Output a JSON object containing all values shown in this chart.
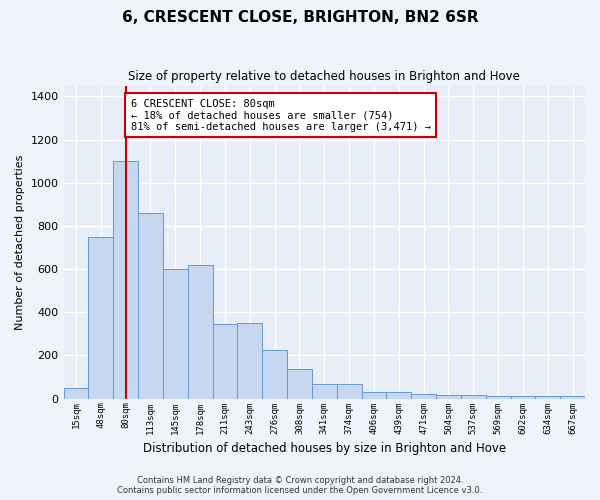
{
  "title": "6, CRESCENT CLOSE, BRIGHTON, BN2 6SR",
  "subtitle": "Size of property relative to detached houses in Brighton and Hove",
  "xlabel": "Distribution of detached houses by size in Brighton and Hove",
  "ylabel": "Number of detached properties",
  "categories": [
    "15sqm",
    "48sqm",
    "80sqm",
    "113sqm",
    "145sqm",
    "178sqm",
    "211sqm",
    "243sqm",
    "276sqm",
    "308sqm",
    "341sqm",
    "374sqm",
    "406sqm",
    "439sqm",
    "471sqm",
    "504sqm",
    "537sqm",
    "569sqm",
    "602sqm",
    "634sqm",
    "667sqm"
  ],
  "values": [
    50,
    750,
    1100,
    860,
    600,
    620,
    345,
    350,
    225,
    135,
    70,
    70,
    30,
    30,
    20,
    15,
    15,
    10,
    10,
    10,
    10
  ],
  "bar_color": "#c5d8f0",
  "bar_edge_color": "#6699cc",
  "vline_x": 2,
  "vline_color": "#cc0000",
  "annotation_text": "6 CRESCENT CLOSE: 80sqm\n← 18% of detached houses are smaller (754)\n81% of semi-detached houses are larger (3,471) →",
  "annotation_box_color": "#ffffff",
  "annotation_box_edge": "#cc0000",
  "ylim": [
    0,
    1450
  ],
  "yticks": [
    0,
    200,
    400,
    600,
    800,
    1000,
    1200,
    1400
  ],
  "background_color": "#e8eef8",
  "grid_color": "#ffffff",
  "footer1": "Contains HM Land Registry data © Crown copyright and database right 2024.",
  "footer2": "Contains public sector information licensed under the Open Government Licence v3.0."
}
